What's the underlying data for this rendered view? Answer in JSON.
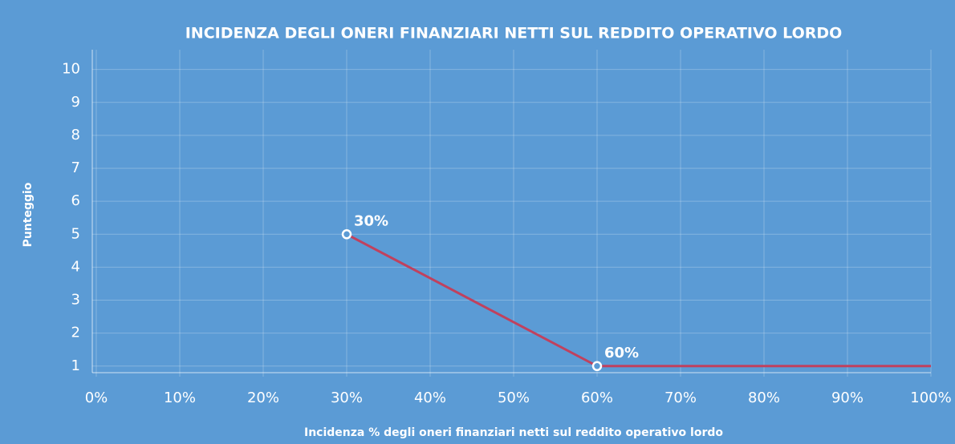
{
  "chart_data": {
    "type": "line",
    "title": "INCIDENZA DEGLI ONERI FINANZIARI NETTI SUL REDDITO OPERATIVO LORDO",
    "xlabel": "Incidenza % degli oneri finanziari netti sul reddito operativo lordo",
    "ylabel": "Punteggio",
    "x": [
      30,
      60,
      100
    ],
    "series": [
      {
        "color": "#c0415e",
        "values": [
          5,
          1,
          1
        ],
        "point_labels": [
          "30%",
          "60%",
          null
        ],
        "markers": [
          true,
          true,
          false
        ]
      }
    ],
    "xlim": [
      0,
      100
    ],
    "xticks": [
      {
        "value": 0,
        "label": "0%"
      },
      {
        "value": 10,
        "label": "10%"
      },
      {
        "value": 20,
        "label": "20%"
      },
      {
        "value": 30,
        "label": "30%"
      },
      {
        "value": 40,
        "label": "40%"
      },
      {
        "value": 50,
        "label": "50%"
      },
      {
        "value": 60,
        "label": "60%"
      },
      {
        "value": 70,
        "label": "70%"
      },
      {
        "value": 80,
        "label": "80%"
      },
      {
        "value": 90,
        "label": "90%"
      },
      {
        "value": 100,
        "label": "100%"
      }
    ],
    "ylim": [
      0.8,
      10.6
    ],
    "yticks": [
      1,
      2,
      3,
      4,
      5,
      6,
      7,
      8,
      9,
      10
    ],
    "grid": true,
    "background": "#5b9bd5"
  }
}
